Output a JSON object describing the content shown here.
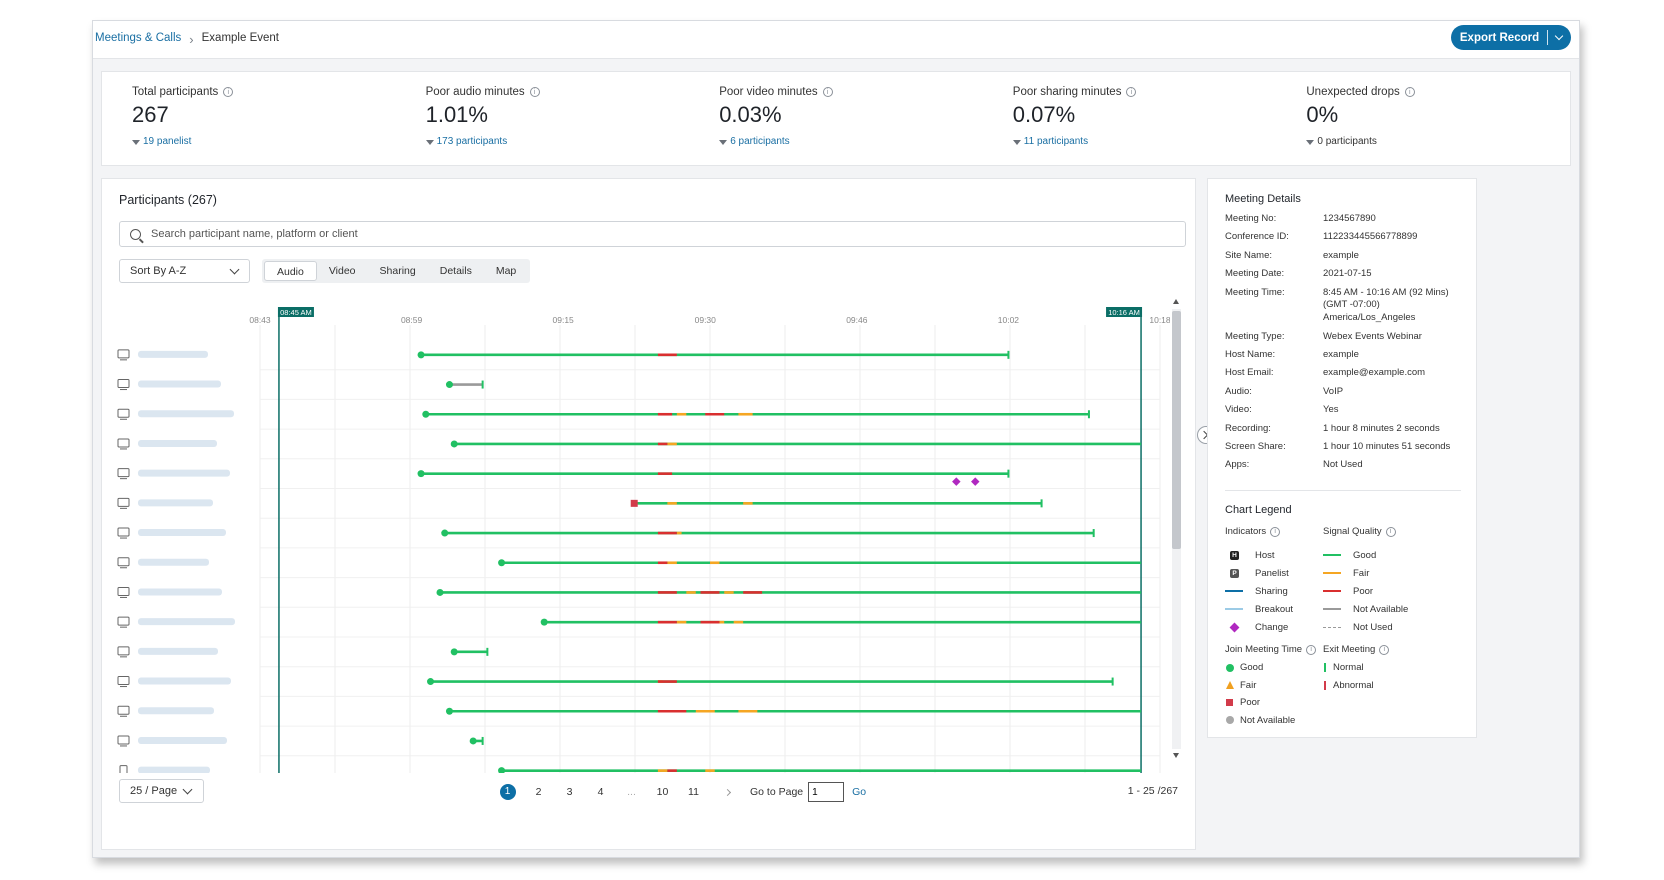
{
  "breadcrumb": {
    "parent": "Meetings & Calls",
    "current": "Example Event"
  },
  "export_button": {
    "label": "Export Record"
  },
  "stats": [
    {
      "label": "Total participants",
      "value": "267",
      "sub": "19 panelist"
    },
    {
      "label": "Poor audio minutes",
      "value": "1.01%",
      "sub": "173 participants"
    },
    {
      "label": "Poor video minutes",
      "value": "0.03%",
      "sub": "6 participants"
    },
    {
      "label": "Poor sharing minutes",
      "value": "0.07%",
      "sub": "11 participants"
    },
    {
      "label": "Unexpected drops",
      "value": "0%",
      "sub": "0 participants"
    }
  ],
  "participants": {
    "title": "Participants (267)",
    "search_placeholder": "Search participant name, platform or client",
    "sort_label": "Sort By A-Z",
    "tabs": [
      "Audio",
      "Video",
      "Sharing",
      "Details",
      "Map"
    ],
    "active_tab": "Audio"
  },
  "timeline": {
    "start_marker": "08:45 AM",
    "end_marker": "10:16 AM",
    "ticks": [
      "08:43",
      "08:59",
      "09:15",
      "09:30",
      "09:46",
      "10:02",
      "10:18"
    ],
    "tick_minutes": [
      523,
      539,
      555,
      570,
      586,
      602,
      618
    ],
    "start_minute": 525,
    "end_minute": 616,
    "rows": [
      {
        "device": "desktop",
        "join": 540,
        "end": 602,
        "exit": "normal",
        "poor": [
          [
            565,
            567
          ]
        ],
        "fair": [],
        "color": "good",
        "diamonds": []
      },
      {
        "device": "desktop",
        "join": 543,
        "end": 546.5,
        "exit": "normal",
        "poor": [],
        "fair": [],
        "color": "na",
        "diamonds": []
      },
      {
        "device": "desktop",
        "join": 540.5,
        "end": 610.5,
        "exit": "normal",
        "poor": [
          [
            565,
            566.5
          ],
          [
            570,
            572
          ]
        ],
        "fair": [
          [
            567,
            568
          ],
          [
            573.5,
            575
          ]
        ],
        "color": "good",
        "diamonds": []
      },
      {
        "device": "desktop",
        "join": 543.5,
        "end": 616,
        "exit": "none",
        "poor": [
          [
            565,
            566
          ]
        ],
        "fair": [
          [
            566,
            567
          ]
        ],
        "color": "good",
        "diamonds": []
      },
      {
        "device": "desktop",
        "join": 540,
        "end": 602,
        "exit": "normal",
        "poor": [
          [
            565,
            566.5
          ]
        ],
        "fair": [],
        "color": "good",
        "diamonds": [
          596.5,
          598.5
        ]
      },
      {
        "device": "desktop",
        "join": 562.5,
        "end": 605.5,
        "exit": "normal",
        "poor": [],
        "fair": [
          [
            566,
            567
          ],
          [
            574,
            575
          ]
        ],
        "color": "good",
        "join_state": "poor",
        "diamonds": []
      },
      {
        "device": "desktop",
        "join": 542.5,
        "end": 611,
        "exit": "normal",
        "poor": [
          [
            565,
            567
          ]
        ],
        "fair": [
          [
            567,
            567.5
          ]
        ],
        "color": "good",
        "diamonds": []
      },
      {
        "device": "desktop",
        "join": 548.5,
        "end": 616,
        "exit": "none",
        "poor": [
          [
            565,
            566
          ]
        ],
        "fair": [
          [
            566,
            567
          ],
          [
            570.5,
            571.5
          ]
        ],
        "color": "good",
        "diamonds": []
      },
      {
        "device": "desktop",
        "join": 542,
        "end": 616,
        "exit": "none",
        "poor": [
          [
            565,
            567
          ],
          [
            569.5,
            571.5
          ],
          [
            574,
            576
          ]
        ],
        "fair": [
          [
            568,
            569
          ],
          [
            572,
            573
          ]
        ],
        "color": "good",
        "diamonds": []
      },
      {
        "device": "desktop",
        "join": 553,
        "end": 616,
        "exit": "none",
        "poor": [
          [
            565,
            567
          ],
          [
            569.5,
            571.5
          ]
        ],
        "fair": [
          [
            567,
            568
          ],
          [
            571.5,
            572
          ],
          [
            573,
            574
          ]
        ],
        "color": "good",
        "diamonds": []
      },
      {
        "device": "desktop",
        "join": 543.5,
        "end": 547,
        "exit": "normal",
        "poor": [],
        "fair": [],
        "color": "good",
        "diamonds": []
      },
      {
        "device": "desktop",
        "join": 541,
        "end": 613,
        "exit": "normal",
        "poor": [
          [
            565,
            567
          ]
        ],
        "fair": [
          [
            565,
            565.5
          ]
        ],
        "color": "good",
        "diamonds": []
      },
      {
        "device": "desktop",
        "join": 543,
        "end": 616,
        "exit": "none",
        "poor": [
          [
            565,
            568
          ]
        ],
        "fair": [
          [
            569,
            571
          ],
          [
            573.5,
            575.5
          ]
        ],
        "color": "good",
        "diamonds": []
      },
      {
        "device": "desktop",
        "join": 545.5,
        "end": 546.5,
        "exit": "normal",
        "poor": [],
        "fair": [],
        "color": "good",
        "diamonds": []
      },
      {
        "device": "mobile",
        "join": 548.5,
        "end": 616,
        "exit": "none",
        "poor": [
          [
            566,
            567
          ]
        ],
        "fair": [
          [
            565,
            566
          ],
          [
            570,
            571
          ]
        ],
        "color": "good",
        "diamonds": []
      }
    ]
  },
  "pagination": {
    "page_size": "25 / Page",
    "pages": [
      "1",
      "2",
      "3",
      "4",
      "...",
      "10",
      "11"
    ],
    "go_to_label": "Go to Page",
    "go_to_value": "1",
    "go_label": "Go",
    "range": "1 - 25 /267"
  },
  "meeting_details": {
    "title": "Meeting Details",
    "rows": [
      {
        "k": "Meeting No:",
        "v": "1234567890"
      },
      {
        "k": "Conference ID:",
        "v": "112233445566778899"
      },
      {
        "k": "Site Name:",
        "v": "example"
      },
      {
        "k": "Meeting Date:",
        "v": "2021-07-15"
      },
      {
        "k": "Meeting Time:",
        "v": "8:45 AM - 10:16 AM (92 Mins) (GMT -07:00) America/Los_Angeles"
      },
      {
        "k": "Meeting Type:",
        "v": "Webex Events Webinar"
      },
      {
        "k": "Host Name:",
        "v": "example"
      },
      {
        "k": "Host Email:",
        "v": "example@example.com"
      },
      {
        "k": "Audio:",
        "v": "VoIP"
      },
      {
        "k": "Video:",
        "v": "Yes"
      },
      {
        "k": "Recording:",
        "v": "1 hour 8 minutes 2 seconds"
      },
      {
        "k": "Screen Share:",
        "v": "1 hour 10 minutes 51 seconds"
      },
      {
        "k": "Apps:",
        "v": "Not Used"
      }
    ]
  },
  "legend": {
    "title": "Chart Legend",
    "indicators_title": "Indicators",
    "indicators": [
      "Host",
      "Panelist",
      "Sharing",
      "Breakout",
      "Change"
    ],
    "signal_title": "Signal Quality",
    "signal": [
      "Good",
      "Fair",
      "Poor",
      "Not Available",
      "Not Used"
    ],
    "join_title": "Join Meeting Time",
    "join": [
      "Good",
      "Fair",
      "Poor",
      "Not Available"
    ],
    "exit_title": "Exit Meeting",
    "exit": [
      "Normal",
      "Abnormal"
    ]
  },
  "colors": {
    "accent": "#0d6fa6",
    "good": "#21c063",
    "fair": "#f5a623",
    "poor": "#d92f2f",
    "not_available": "#9a9a9a",
    "change": "#b028c0",
    "sharing": "#0d6fa6",
    "breakout": "#9ccbe6",
    "marker": "#0b6e66"
  }
}
